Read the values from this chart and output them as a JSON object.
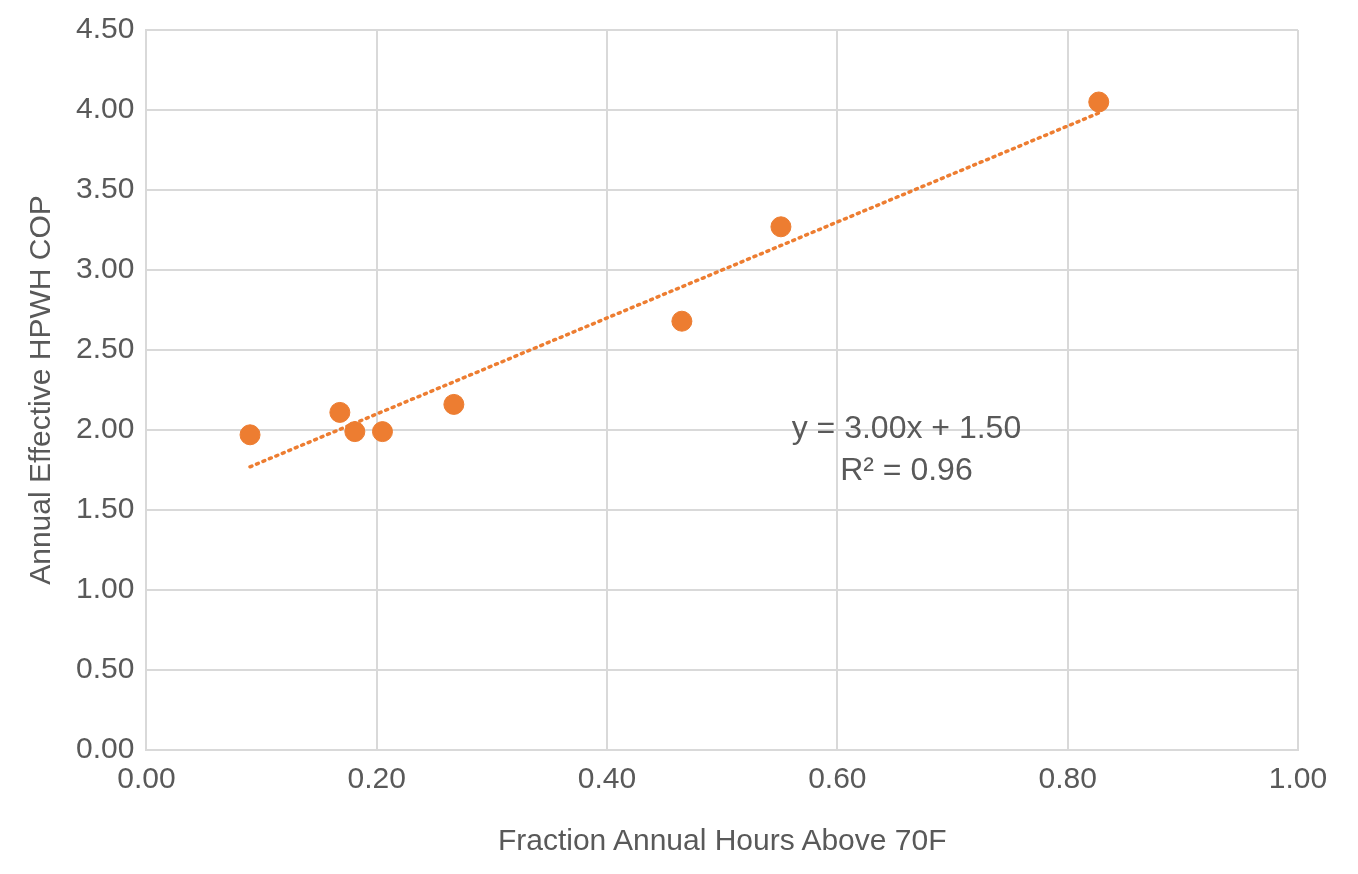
{
  "chart_data": {
    "type": "scatter",
    "xlabel": "Fraction Annual Hours Above 70F",
    "ylabel": "Annual Effective HPWH COP",
    "xlim": [
      0,
      1
    ],
    "xticks": [
      {
        "value": 0,
        "label": "0.00"
      },
      {
        "value": 0.2,
        "label": "0.20"
      },
      {
        "value": 0.4,
        "label": "0.40"
      },
      {
        "value": 0.6,
        "label": "0.60"
      },
      {
        "value": 0.8,
        "label": "0.80"
      },
      {
        "value": 1,
        "label": "1.00"
      }
    ],
    "ylim": [
      0,
      4.5
    ],
    "yticks": [
      {
        "value": 0,
        "label": "0.00"
      },
      {
        "value": 0.5,
        "label": "0.50"
      },
      {
        "value": 1,
        "label": "1.00"
      },
      {
        "value": 1.5,
        "label": "1.50"
      },
      {
        "value": 2,
        "label": "2.00"
      },
      {
        "value": 2.5,
        "label": "2.50"
      },
      {
        "value": 3,
        "label": "3.00"
      },
      {
        "value": 3.5,
        "label": "3.50"
      },
      {
        "value": 4,
        "label": "4.00"
      },
      {
        "value": 4.5,
        "label": "4.50"
      }
    ],
    "grid": true,
    "legend": false,
    "marker": "circle",
    "series": [
      {
        "color": "#ed7d31",
        "x": [
          0.09,
          0.168,
          0.181,
          0.205,
          0.267,
          0.465,
          0.551,
          0.827
        ],
        "values": [
          1.97,
          2.11,
          1.99,
          1.99,
          2.16,
          2.68,
          3.27,
          4.05
        ]
      },
      {
        "type": "line",
        "color": "#ed7d31",
        "line_style": "dotted",
        "marker": "none",
        "x": [
          0.09,
          0.83
        ],
        "values": [
          1.77,
          3.99
        ]
      }
    ],
    "annotations": [
      "y = 3.00x + 1.50",
      "R² = 0.96"
    ]
  }
}
